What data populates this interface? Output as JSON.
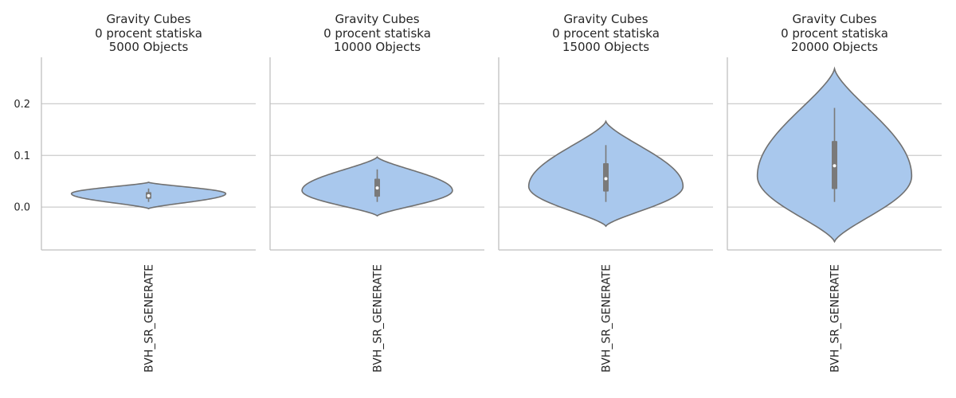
{
  "chart_data": [
    {
      "type": "violin",
      "title": [
        "Gravity Cubes",
        "0 procent statiska",
        "5000 Objects"
      ],
      "categories": [
        "BVH_SR_GENERATE"
      ],
      "yticks": [
        "0.0",
        "0.1",
        "0.2"
      ],
      "ylim": [
        -0.083,
        0.29
      ],
      "violin": {
        "min": -0.003,
        "max": 0.048,
        "mode": 0.026,
        "halfwidth": 0.8
      },
      "box": {
        "whisker_low": 0.01,
        "q1": 0.016,
        "median": 0.022,
        "q3": 0.029,
        "whisker_high": 0.036
      },
      "grid": true
    },
    {
      "type": "violin",
      "title": [
        "Gravity Cubes",
        "0 procent statiska",
        "10000 Objects"
      ],
      "categories": [
        "BVH_SR_GENERATE"
      ],
      "yticks": [
        "0.0",
        "0.1",
        "0.2"
      ],
      "ylim": [
        -0.083,
        0.29
      ],
      "violin": {
        "min": -0.017,
        "max": 0.097,
        "mode": 0.032,
        "halfwidth": 0.78
      },
      "box": {
        "whisker_low": 0.01,
        "q1": 0.02,
        "median": 0.037,
        "q3": 0.055,
        "whisker_high": 0.073
      },
      "grid": true
    },
    {
      "type": "violin",
      "title": [
        "Gravity Cubes",
        "0 procent statiska",
        "15000 Objects"
      ],
      "categories": [
        "BVH_SR_GENERATE"
      ],
      "yticks": [
        "0.0",
        "0.1",
        "0.2"
      ],
      "ylim": [
        -0.083,
        0.29
      ],
      "violin": {
        "min": -0.037,
        "max": 0.166,
        "mode": 0.04,
        "halfwidth": 0.8
      },
      "box": {
        "whisker_low": 0.01,
        "q1": 0.03,
        "median": 0.055,
        "q3": 0.085,
        "whisker_high": 0.12
      },
      "grid": true
    },
    {
      "type": "violin",
      "title": [
        "Gravity Cubes",
        "0 procent statiska",
        "20000 Objects"
      ],
      "categories": [
        "BVH_SR_GENERATE"
      ],
      "yticks": [
        "0.0",
        "0.1",
        "0.2"
      ],
      "ylim": [
        -0.083,
        0.29
      ],
      "violin": {
        "min": -0.067,
        "max": 0.268,
        "mode": 0.06,
        "halfwidth": 0.8
      },
      "box": {
        "whisker_low": 0.01,
        "q1": 0.035,
        "median": 0.08,
        "q3": 0.128,
        "whisker_high": 0.192
      },
      "grid": true
    }
  ],
  "colors": {
    "violin_fill": "#a9c8ed",
    "violin_edge": "#707070",
    "box": "#7a7a7a",
    "median": "#ffffff",
    "grid": "#cccccc",
    "axis": "#bfbfbf"
  }
}
